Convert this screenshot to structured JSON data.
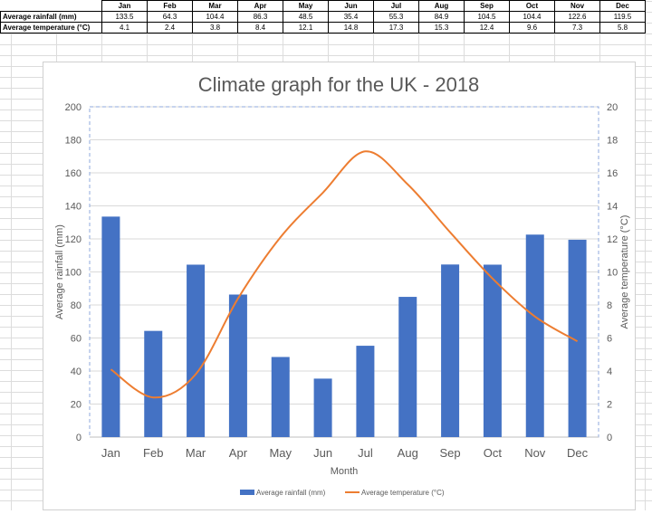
{
  "table": {
    "months": [
      "Jan",
      "Feb",
      "Mar",
      "Apr",
      "May",
      "Jun",
      "Jul",
      "Aug",
      "Sep",
      "Oct",
      "Nov",
      "Dec"
    ],
    "rows": [
      {
        "label": "Average rainfall (mm)",
        "values": [
          "133.5",
          "64.3",
          "104.4",
          "86.3",
          "48.5",
          "35.4",
          "55.3",
          "84.9",
          "104.5",
          "104.4",
          "122.6",
          "119.5"
        ]
      },
      {
        "label": "Average temperature (°C)",
        "values": [
          "4.1",
          "2.4",
          "3.8",
          "8.4",
          "12.1",
          "14.8",
          "17.3",
          "15.3",
          "12.4",
          "9.6",
          "7.3",
          "5.8"
        ]
      }
    ]
  },
  "chart_data": {
    "type": "bar+line",
    "title": "Climate graph for the UK - 2018",
    "xlabel": "Month",
    "ylabel": "Average rainfall (mm)",
    "y2label": "Average temperature (°C)",
    "categories": [
      "Jan",
      "Feb",
      "Mar",
      "Apr",
      "May",
      "Jun",
      "Jul",
      "Aug",
      "Sep",
      "Oct",
      "Nov",
      "Dec"
    ],
    "ylim": [
      0,
      200
    ],
    "y2lim": [
      0,
      20
    ],
    "yticks": [
      0,
      20,
      40,
      60,
      80,
      100,
      120,
      140,
      160,
      180,
      200
    ],
    "y2ticks": [
      0,
      2,
      4,
      6,
      8,
      10,
      12,
      14,
      16,
      18,
      20
    ],
    "grid": true,
    "legend": "bottom",
    "series": [
      {
        "name": "Average rainfall (mm)",
        "type": "bar",
        "axis": "left",
        "color": "#4472C4",
        "values": [
          133.5,
          64.3,
          104.4,
          86.3,
          48.5,
          35.4,
          55.3,
          84.9,
          104.5,
          104.4,
          122.6,
          119.5
        ]
      },
      {
        "name": "Average temperature (°C)",
        "type": "line",
        "axis": "right",
        "color": "#ED7D31",
        "values": [
          4.1,
          2.4,
          3.8,
          8.4,
          12.1,
          14.8,
          17.3,
          15.3,
          12.4,
          9.6,
          7.3,
          5.8
        ]
      }
    ]
  }
}
